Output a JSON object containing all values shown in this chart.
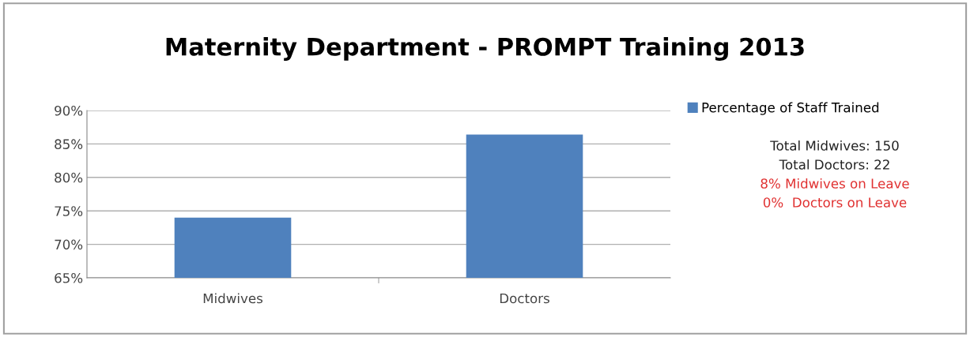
{
  "chart_data": {
    "type": "bar",
    "title": "Maternity Department - PROMPT Training 2013",
    "categories": [
      "Midwives",
      "Doctors"
    ],
    "series": [
      {
        "name": "Percentage of Staff Trained",
        "color": "#4f81bd",
        "values": [
          74.0,
          86.4
        ]
      }
    ],
    "ylim": [
      65,
      90
    ],
    "yticks": [
      {
        "value": 65,
        "label": "65%"
      },
      {
        "value": 70,
        "label": "70%"
      },
      {
        "value": 75,
        "label": "75%"
      },
      {
        "value": 80,
        "label": "80%"
      },
      {
        "value": 85,
        "label": "85%"
      },
      {
        "value": 90,
        "label": "90%"
      }
    ],
    "grid": "y",
    "legend": "right",
    "annotations": [
      "Total Midwives: 150",
      "Total Doctors: 22",
      "8% Midwives on Leave",
      "0%  Doctors on Leave"
    ]
  }
}
